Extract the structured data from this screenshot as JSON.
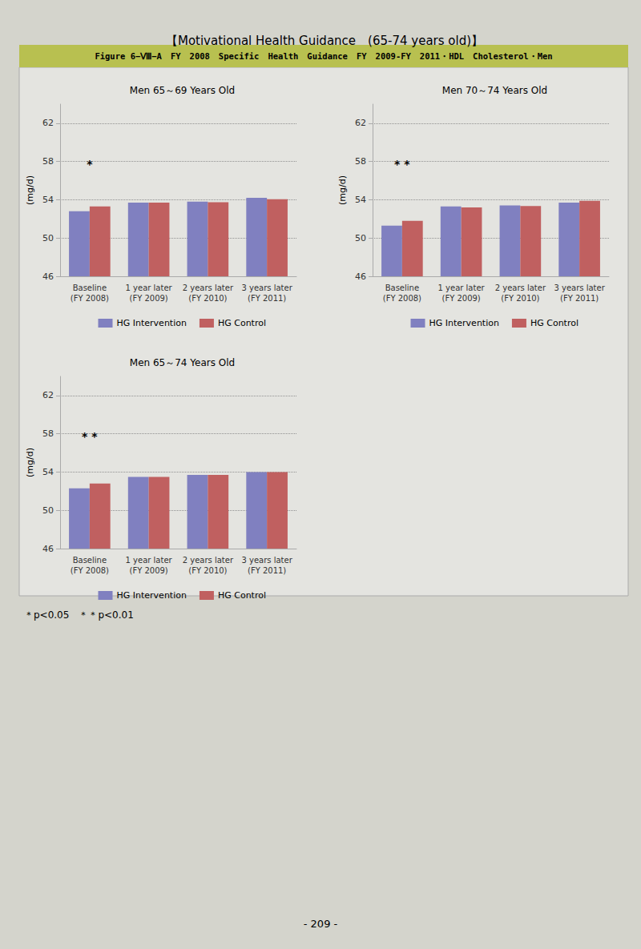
{
  "title": "【Motivational Health Guidance　(65-74 years old)】",
  "subtitle": "Figure 6−Ⅷ−A　FY　2008　Specific　Health　Guidance　FY　2009-FY　2011・HDL　Cholesterol・Men",
  "footnote": "＊p<0.05　＊＊p<0.01",
  "page_number": "- 209 -",
  "chart_data": [
    {
      "type": "bar",
      "title": "Men 65～69 Years Old",
      "ylabel": "(mg/d)",
      "categories": [
        "Baseline\n(FY 2008)",
        "1 year later\n(FY 2009)",
        "2 years later\n(FY 2010)",
        "3 years later\n(FY 2011)"
      ],
      "series": [
        {
          "name": "HG Intervention",
          "color": "#8080c0",
          "values": [
            52.8,
            53.7,
            53.8,
            54.2
          ]
        },
        {
          "name": "HG Control",
          "color": "#c06060",
          "values": [
            53.3,
            53.7,
            53.75,
            54.05
          ]
        }
      ],
      "ylim": [
        46,
        64
      ],
      "yticks": [
        46,
        50,
        54,
        58,
        62
      ],
      "grid": true,
      "legend": "bottom",
      "annotation": "*"
    },
    {
      "type": "bar",
      "title": "Men 70～74 Years Old",
      "ylabel": "(mg/d)",
      "categories": [
        "Baseline\n(FY 2008)",
        "1 year later\n(FY 2009)",
        "2 years later\n(FY 2010)",
        "3 years later\n(FY 2011)"
      ],
      "series": [
        {
          "name": "HG Intervention",
          "color": "#8080c0",
          "values": [
            51.3,
            53.3,
            53.4,
            53.7
          ]
        },
        {
          "name": "HG Control",
          "color": "#c06060",
          "values": [
            51.8,
            53.2,
            53.35,
            53.9
          ]
        }
      ],
      "ylim": [
        46,
        64
      ],
      "yticks": [
        46,
        50,
        54,
        58,
        62
      ],
      "grid": true,
      "legend": "bottom",
      "annotation": "* *"
    },
    {
      "type": "bar",
      "title": "Men 65～74 Years Old",
      "ylabel": "(mg/d)",
      "categories": [
        "Baseline\n(FY 2008)",
        "1 year later\n(FY 2009)",
        "2 years later\n(FY 2010)",
        "3 years later\n(FY 2011)"
      ],
      "series": [
        {
          "name": "HG Intervention",
          "color": "#8080c0",
          "values": [
            52.3,
            53.5,
            53.7,
            54.0
          ]
        },
        {
          "name": "HG Control",
          "color": "#c06060",
          "values": [
            52.8,
            53.5,
            53.7,
            54.0
          ]
        }
      ],
      "ylim": [
        46,
        64
      ],
      "yticks": [
        46,
        50,
        54,
        58,
        62
      ],
      "grid": true,
      "legend": "bottom",
      "annotation": "* *"
    }
  ]
}
